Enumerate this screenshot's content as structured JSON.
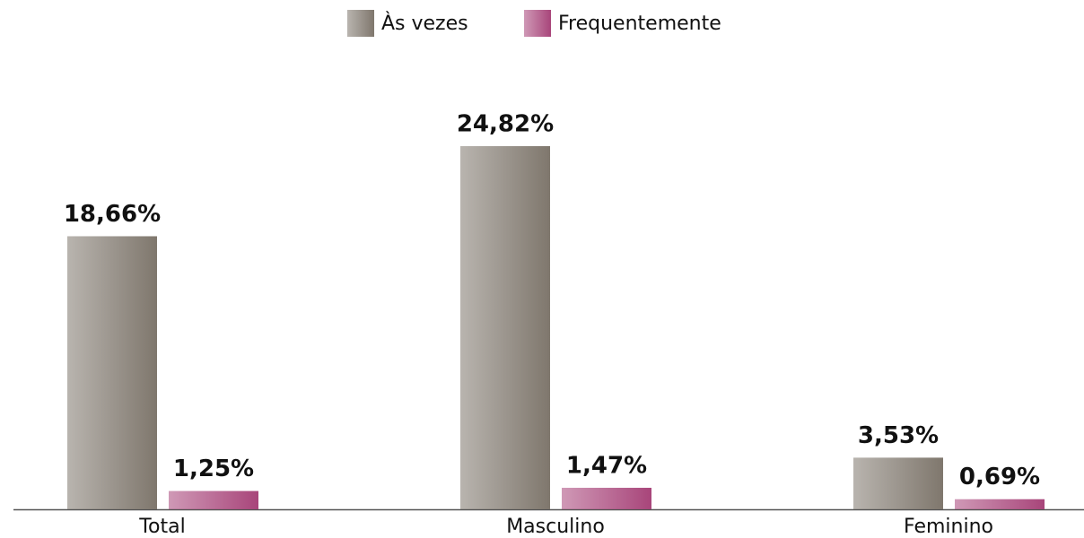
{
  "chart_data": {
    "type": "bar",
    "categories": [
      "Total",
      "Masculino",
      "Feminino"
    ],
    "series": [
      {
        "name": "Às vezes",
        "color": "#7f776d",
        "values": [
          18.66,
          24.82,
          3.53
        ],
        "value_labels": [
          "18,66%",
          "24,82%",
          "3,53%"
        ]
      },
      {
        "name": "Frequentemente",
        "color": "#a8457a",
        "values": [
          1.25,
          1.47,
          0.69
        ],
        "value_labels": [
          "1,25%",
          "1,47%",
          "0,69%"
        ]
      }
    ]
  }
}
